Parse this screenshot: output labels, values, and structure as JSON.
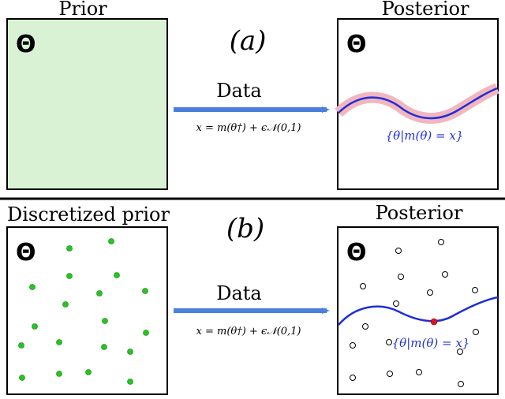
{
  "panel_a": {
    "tag": "(a)",
    "prior_title": "Prior",
    "posterior_title": "Posterior",
    "theta_symbol": "Θ",
    "arrow_label": "Data",
    "equation": "x = m(θ†) + ϵ𝒩(0,1)",
    "curve_label": "{θ|m(θ) = x}"
  },
  "panel_b": {
    "tag": "(b)",
    "prior_title": "Discretized prior",
    "posterior_title": "Posterior",
    "theta_symbol": "Θ",
    "arrow_label": "Data",
    "equation": "x = m(θ†) + ϵ𝒩(0,1)",
    "curve_label": "{θ|m(θ) = x}"
  },
  "colors": {
    "prior_fill": "#d9f2d4",
    "green_dot": "#22c81e",
    "arrow": "#4a7fdc",
    "curve": "#1f2fd6",
    "band": "#f2b6be",
    "highlight_dot": "#e0141c"
  },
  "icons": [
    "theta-symbol",
    "data-arrow"
  ]
}
